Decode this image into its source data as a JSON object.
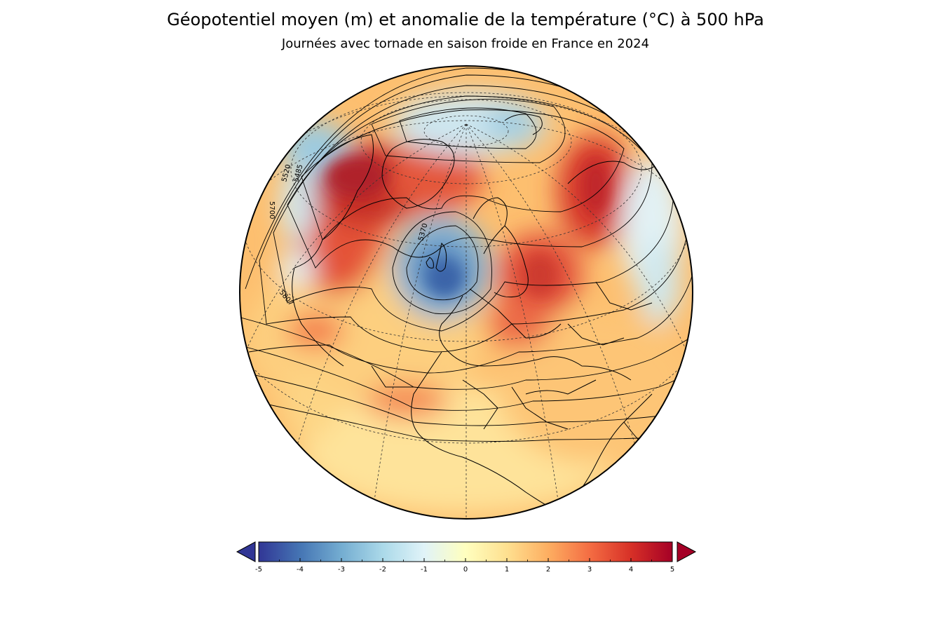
{
  "header": {
    "title": "Géopotentiel moyen (m) et anomalie de la température (°C) à 500 hPa",
    "subtitle": "Journées avec tornade en saison froide en France en 2024"
  },
  "map": {
    "projection": "orthographic",
    "contour_labels": [
      "5520",
      "5485",
      "5700",
      "5370",
      "5807"
    ]
  },
  "colorbar": {
    "min": -5,
    "max": 5,
    "extend": "both",
    "tick_labels": [
      "-5",
      "-4",
      "-3",
      "-2",
      "-1",
      "0",
      "1",
      "2",
      "3",
      "4",
      "5"
    ],
    "colors": [
      "#313695",
      "#4575b4",
      "#74add1",
      "#abd9e9",
      "#e0f3f8",
      "#ffffbf",
      "#fee090",
      "#fdae61",
      "#f46d43",
      "#d73027",
      "#a50026"
    ]
  }
}
